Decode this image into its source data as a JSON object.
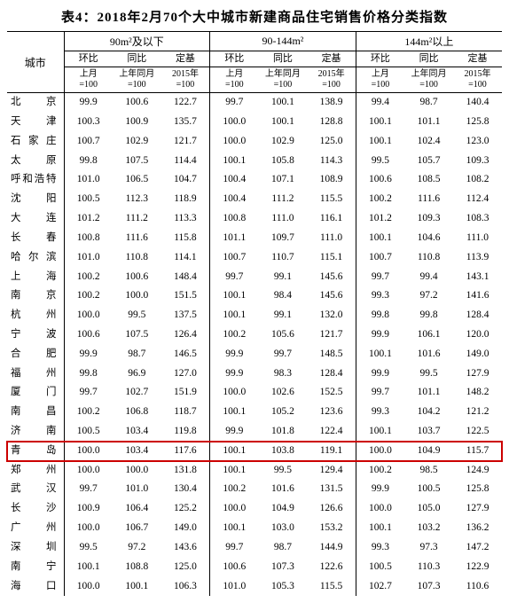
{
  "title": "表4：2018年2月70个大中城市新建商品住宅销售价格分类指数",
  "cityHeader": "城市",
  "groups": [
    "90m²及以下",
    "90-144m²",
    "144m²以上"
  ],
  "subCols": [
    {
      "top": "环比",
      "bot": "上月=100"
    },
    {
      "top": "同比",
      "bot": "上年同月=100"
    },
    {
      "top": "定基",
      "bot": "2015年=100"
    }
  ],
  "highlight": {
    "rowIndex": 18,
    "color": "#cc0000"
  },
  "colors": {
    "background": "#ffffff",
    "text": "#000000",
    "border": "#000000"
  },
  "fontsize": {
    "title": 15,
    "body": 11.5,
    "header": 12
  },
  "rows": [
    {
      "city": "北　　京",
      "v": [
        "99.9",
        "100.6",
        "122.7",
        "99.7",
        "100.1",
        "138.9",
        "99.4",
        "98.7",
        "140.4"
      ]
    },
    {
      "city": "天　　津",
      "v": [
        "100.3",
        "100.9",
        "135.7",
        "100.0",
        "100.1",
        "128.8",
        "100.1",
        "101.1",
        "125.8"
      ]
    },
    {
      "city": "石 家 庄",
      "v": [
        "100.7",
        "102.9",
        "121.7",
        "100.0",
        "102.9",
        "125.0",
        "100.1",
        "102.4",
        "123.0"
      ]
    },
    {
      "city": "太　　原",
      "v": [
        "99.8",
        "107.5",
        "114.4",
        "100.1",
        "105.8",
        "114.3",
        "99.5",
        "105.7",
        "109.3"
      ]
    },
    {
      "city": "呼和浩特",
      "v": [
        "101.0",
        "106.5",
        "104.7",
        "100.4",
        "107.1",
        "108.9",
        "100.6",
        "108.5",
        "108.2"
      ]
    },
    {
      "city": "沈　　阳",
      "v": [
        "100.5",
        "112.3",
        "118.9",
        "100.4",
        "111.2",
        "115.5",
        "100.2",
        "111.6",
        "112.4"
      ]
    },
    {
      "city": "大　　连",
      "v": [
        "101.2",
        "111.2",
        "113.3",
        "100.8",
        "111.0",
        "116.1",
        "101.2",
        "109.3",
        "108.3"
      ]
    },
    {
      "city": "长　　春",
      "v": [
        "100.8",
        "111.6",
        "115.8",
        "101.1",
        "109.7",
        "111.0",
        "100.1",
        "104.6",
        "111.0"
      ]
    },
    {
      "city": "哈 尔 滨",
      "v": [
        "101.0",
        "110.8",
        "114.1",
        "100.7",
        "110.7",
        "115.1",
        "100.7",
        "110.8",
        "113.9"
      ]
    },
    {
      "city": "上　　海",
      "v": [
        "100.2",
        "100.6",
        "148.4",
        "99.7",
        "99.1",
        "145.6",
        "99.7",
        "99.4",
        "143.1"
      ]
    },
    {
      "city": "南　　京",
      "v": [
        "100.2",
        "100.0",
        "151.5",
        "100.1",
        "98.4",
        "145.6",
        "99.3",
        "97.2",
        "141.6"
      ]
    },
    {
      "city": "杭　　州",
      "v": [
        "100.0",
        "99.5",
        "137.5",
        "100.1",
        "99.1",
        "132.0",
        "99.8",
        "99.8",
        "128.4"
      ]
    },
    {
      "city": "宁　　波",
      "v": [
        "100.6",
        "107.5",
        "126.4",
        "100.2",
        "105.6",
        "121.7",
        "99.9",
        "106.1",
        "120.0"
      ]
    },
    {
      "city": "合　　肥",
      "v": [
        "99.9",
        "98.7",
        "146.5",
        "99.9",
        "99.7",
        "148.5",
        "100.1",
        "101.6",
        "149.0"
      ]
    },
    {
      "city": "福　　州",
      "v": [
        "99.8",
        "96.9",
        "127.0",
        "99.9",
        "98.3",
        "128.4",
        "99.9",
        "99.5",
        "127.9"
      ]
    },
    {
      "city": "厦　　门",
      "v": [
        "99.7",
        "102.7",
        "151.9",
        "100.0",
        "102.6",
        "152.5",
        "99.7",
        "101.1",
        "148.2"
      ]
    },
    {
      "city": "南　　昌",
      "v": [
        "100.2",
        "106.8",
        "118.7",
        "100.1",
        "105.2",
        "123.6",
        "99.3",
        "104.2",
        "121.2"
      ]
    },
    {
      "city": "济　　南",
      "v": [
        "100.5",
        "103.4",
        "119.8",
        "99.9",
        "101.8",
        "122.4",
        "100.1",
        "103.7",
        "122.5"
      ]
    },
    {
      "city": "青　　岛",
      "v": [
        "100.0",
        "103.4",
        "117.6",
        "100.1",
        "103.8",
        "119.1",
        "100.0",
        "104.9",
        "115.7"
      ]
    },
    {
      "city": "郑　　州",
      "v": [
        "100.0",
        "100.0",
        "131.8",
        "100.1",
        "99.5",
        "129.4",
        "100.2",
        "98.5",
        "124.9"
      ]
    },
    {
      "city": "武　　汉",
      "v": [
        "99.7",
        "101.0",
        "130.4",
        "100.2",
        "101.6",
        "131.5",
        "99.9",
        "100.5",
        "125.8"
      ]
    },
    {
      "city": "长　　沙",
      "v": [
        "100.9",
        "106.4",
        "125.2",
        "100.0",
        "104.9",
        "126.6",
        "100.0",
        "105.0",
        "127.9"
      ]
    },
    {
      "city": "广　　州",
      "v": [
        "100.0",
        "106.7",
        "149.0",
        "100.1",
        "103.0",
        "153.2",
        "100.1",
        "103.2",
        "136.2"
      ]
    },
    {
      "city": "深　　圳",
      "v": [
        "99.5",
        "97.2",
        "143.6",
        "99.7",
        "98.7",
        "144.9",
        "99.3",
        "97.3",
        "147.2"
      ]
    },
    {
      "city": "南　　宁",
      "v": [
        "100.1",
        "108.8",
        "125.0",
        "100.6",
        "107.3",
        "122.6",
        "100.5",
        "110.3",
        "122.9"
      ]
    },
    {
      "city": "海　　口",
      "v": [
        "100.0",
        "100.1",
        "106.3",
        "101.0",
        "105.3",
        "115.5",
        "102.7",
        "107.3",
        "110.6"
      ]
    }
  ]
}
